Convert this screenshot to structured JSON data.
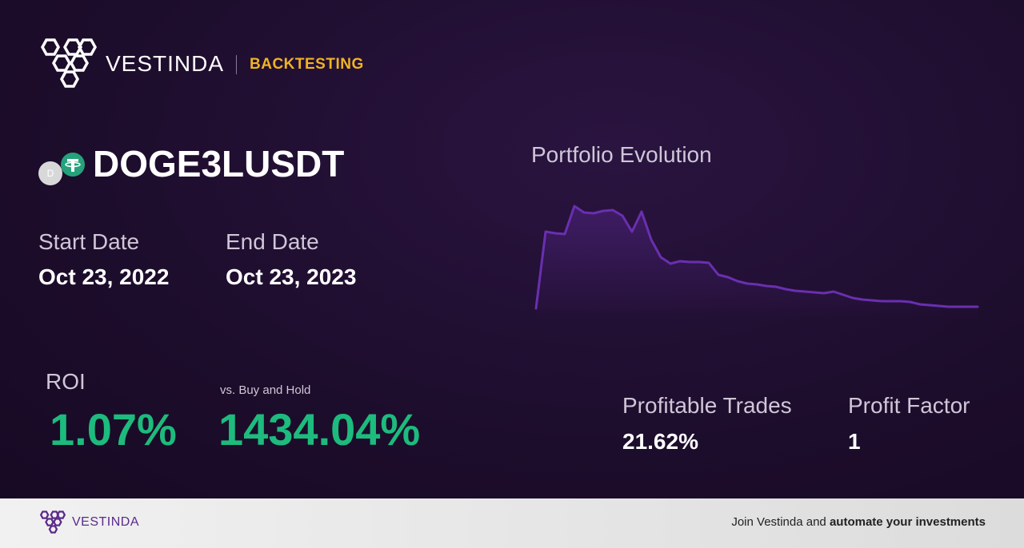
{
  "header": {
    "brand": "VESTINDA",
    "section": "BACKTESTING"
  },
  "asset": {
    "base_icon": "D",
    "symbol": "DOGE3LUSDT"
  },
  "dates": {
    "start_label": "Start Date",
    "start_value": "Oct 23, 2022",
    "end_label": "End Date",
    "end_value": "Oct 23, 2023"
  },
  "stats": {
    "roi_label": "ROI",
    "roi_value": "1.07%",
    "vs_label": "vs. Buy and Hold",
    "vs_value": "1434.04%",
    "trades_label": "Profitable Trades",
    "trades_value": "21.62%",
    "factor_label": "Profit Factor",
    "factor_value": "1"
  },
  "chart": {
    "type": "line",
    "title": "Portfolio Evolution",
    "color": "#6a2fb0",
    "ylim": [
      0,
      160
    ],
    "values": [
      14,
      110,
      108,
      107,
      142,
      134,
      133,
      136,
      137,
      130,
      110,
      135,
      100,
      78,
      70,
      73,
      72,
      72,
      71,
      56,
      53,
      48,
      45,
      44,
      42,
      41,
      38,
      36,
      35,
      34,
      33,
      35,
      31,
      27,
      25,
      24,
      23,
      23,
      23,
      22,
      19,
      18,
      17,
      16,
      16,
      16,
      16
    ]
  },
  "footer": {
    "brand": "VESTINDA",
    "cta_plain": "Join Vestinda and ",
    "cta_bold": "automate your investments"
  }
}
